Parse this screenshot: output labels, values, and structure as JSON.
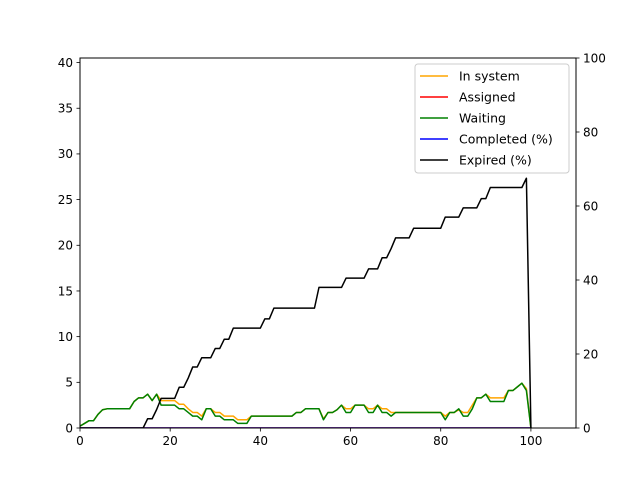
{
  "chart_data": {
    "type": "line",
    "title": "",
    "xlabel": "",
    "ylabel": "",
    "y2label": "",
    "xlim": [
      0,
      110
    ],
    "ylim": [
      0,
      40.5
    ],
    "y2lim": [
      0,
      100
    ],
    "x_ticks": [
      0,
      20,
      40,
      60,
      80,
      100
    ],
    "y_ticks": [
      0,
      5,
      10,
      15,
      20,
      25,
      30,
      35,
      40
    ],
    "y2_ticks": [
      0,
      20,
      40,
      60,
      80,
      100
    ],
    "grid": false,
    "legend_position": "top-right",
    "series": [
      {
        "name": "In system",
        "axis": "left",
        "color": "#ffa500",
        "points": [
          [
            0,
            0.2
          ],
          [
            1,
            0.5
          ],
          [
            2,
            0.8
          ],
          [
            3,
            0.8
          ],
          [
            4,
            1.5
          ],
          [
            5,
            2
          ],
          [
            6,
            2.1
          ],
          [
            7,
            2.1
          ],
          [
            8,
            2.1
          ],
          [
            9,
            2.1
          ],
          [
            10,
            2.1
          ],
          [
            11,
            2.1
          ],
          [
            12,
            2.9
          ],
          [
            13,
            3.3
          ],
          [
            14,
            3.3
          ],
          [
            15,
            3.7
          ],
          [
            16,
            3
          ],
          [
            17,
            3.7
          ],
          [
            18,
            3
          ],
          [
            19,
            3
          ],
          [
            20,
            3
          ],
          [
            21,
            3
          ],
          [
            22,
            2.6
          ],
          [
            23,
            2.6
          ],
          [
            24,
            2.1
          ],
          [
            25,
            1.7
          ],
          [
            26,
            1.7
          ],
          [
            27,
            1.3
          ],
          [
            28,
            2.1
          ],
          [
            29,
            2.1
          ],
          [
            30,
            1.7
          ],
          [
            31,
            1.7
          ],
          [
            32,
            1.3
          ],
          [
            33,
            1.3
          ],
          [
            34,
            1.3
          ],
          [
            35,
            0.9
          ],
          [
            36,
            0.9
          ],
          [
            37,
            0.9
          ],
          [
            38,
            1.3
          ],
          [
            39,
            1.3
          ],
          [
            40,
            1.3
          ],
          [
            41,
            1.3
          ],
          [
            42,
            1.3
          ],
          [
            43,
            1.3
          ],
          [
            44,
            1.3
          ],
          [
            45,
            1.3
          ],
          [
            46,
            1.3
          ],
          [
            47,
            1.3
          ],
          [
            48,
            1.7
          ],
          [
            49,
            1.7
          ],
          [
            50,
            2.1
          ],
          [
            51,
            2.1
          ],
          [
            52,
            2.1
          ],
          [
            53,
            2.1
          ],
          [
            54,
            1
          ],
          [
            55,
            1.7
          ],
          [
            56,
            1.7
          ],
          [
            57,
            2
          ],
          [
            58,
            2.5
          ],
          [
            59,
            2.1
          ],
          [
            60,
            2.1
          ],
          [
            61,
            2.5
          ],
          [
            62,
            2.5
          ],
          [
            63,
            2.5
          ],
          [
            64,
            2.1
          ],
          [
            65,
            2.1
          ],
          [
            66,
            2.5
          ],
          [
            67,
            2.1
          ],
          [
            68,
            2.1
          ],
          [
            69,
            1.7
          ],
          [
            70,
            1.7
          ],
          [
            71,
            1.7
          ],
          [
            72,
            1.7
          ],
          [
            73,
            1.7
          ],
          [
            74,
            1.7
          ],
          [
            75,
            1.7
          ],
          [
            76,
            1.7
          ],
          [
            77,
            1.7
          ],
          [
            78,
            1.7
          ],
          [
            79,
            1.7
          ],
          [
            80,
            1.7
          ],
          [
            81,
            1.3
          ],
          [
            82,
            1.7
          ],
          [
            83,
            1.7
          ],
          [
            84,
            2
          ],
          [
            85,
            1.7
          ],
          [
            86,
            1.7
          ],
          [
            87,
            2.5
          ],
          [
            88,
            3.3
          ],
          [
            89,
            3.3
          ],
          [
            90,
            3.7
          ],
          [
            91,
            3.3
          ],
          [
            92,
            3.3
          ],
          [
            93,
            3.3
          ],
          [
            94,
            3.3
          ],
          [
            95,
            4.1
          ],
          [
            96,
            4.1
          ],
          [
            97,
            4.5
          ],
          [
            98,
            4.9
          ],
          [
            99,
            4.3
          ],
          [
            100,
            0
          ]
        ]
      },
      {
        "name": "Assigned",
        "axis": "left",
        "color": "#ff0000",
        "points": [
          [
            0,
            0
          ],
          [
            100,
            0
          ]
        ]
      },
      {
        "name": "Waiting",
        "axis": "left",
        "color": "#008000",
        "points": [
          [
            0,
            0.2
          ],
          [
            1,
            0.5
          ],
          [
            2,
            0.8
          ],
          [
            3,
            0.8
          ],
          [
            4,
            1.5
          ],
          [
            5,
            2
          ],
          [
            6,
            2.1
          ],
          [
            7,
            2.1
          ],
          [
            8,
            2.1
          ],
          [
            9,
            2.1
          ],
          [
            10,
            2.1
          ],
          [
            11,
            2.1
          ],
          [
            12,
            2.9
          ],
          [
            13,
            3.3
          ],
          [
            14,
            3.3
          ],
          [
            15,
            3.7
          ],
          [
            16,
            3
          ],
          [
            17,
            3.7
          ],
          [
            18,
            2.5
          ],
          [
            19,
            2.5
          ],
          [
            20,
            2.5
          ],
          [
            21,
            2.5
          ],
          [
            22,
            2.1
          ],
          [
            23,
            2.1
          ],
          [
            24,
            1.7
          ],
          [
            25,
            1.3
          ],
          [
            26,
            1.3
          ],
          [
            27,
            0.9
          ],
          [
            28,
            2.1
          ],
          [
            29,
            2.1
          ],
          [
            30,
            1.3
          ],
          [
            31,
            1.3
          ],
          [
            32,
            0.9
          ],
          [
            33,
            0.9
          ],
          [
            34,
            0.9
          ],
          [
            35,
            0.5
          ],
          [
            36,
            0.5
          ],
          [
            37,
            0.5
          ],
          [
            38,
            1.3
          ],
          [
            39,
            1.3
          ],
          [
            40,
            1.3
          ],
          [
            41,
            1.3
          ],
          [
            42,
            1.3
          ],
          [
            43,
            1.3
          ],
          [
            44,
            1.3
          ],
          [
            45,
            1.3
          ],
          [
            46,
            1.3
          ],
          [
            47,
            1.3
          ],
          [
            48,
            1.7
          ],
          [
            49,
            1.7
          ],
          [
            50,
            2.1
          ],
          [
            51,
            2.1
          ],
          [
            52,
            2.1
          ],
          [
            53,
            2.1
          ],
          [
            54,
            0.9
          ],
          [
            55,
            1.7
          ],
          [
            56,
            1.7
          ],
          [
            57,
            2
          ],
          [
            58,
            2.5
          ],
          [
            59,
            1.7
          ],
          [
            60,
            1.7
          ],
          [
            61,
            2.5
          ],
          [
            62,
            2.5
          ],
          [
            63,
            2.5
          ],
          [
            64,
            1.7
          ],
          [
            65,
            1.7
          ],
          [
            66,
            2.5
          ],
          [
            67,
            1.7
          ],
          [
            68,
            1.7
          ],
          [
            69,
            1.3
          ],
          [
            70,
            1.7
          ],
          [
            71,
            1.7
          ],
          [
            72,
            1.7
          ],
          [
            73,
            1.7
          ],
          [
            74,
            1.7
          ],
          [
            75,
            1.7
          ],
          [
            76,
            1.7
          ],
          [
            77,
            1.7
          ],
          [
            78,
            1.7
          ],
          [
            79,
            1.7
          ],
          [
            80,
            1.7
          ],
          [
            81,
            0.9
          ],
          [
            82,
            1.7
          ],
          [
            83,
            1.7
          ],
          [
            84,
            2.1
          ],
          [
            85,
            1.3
          ],
          [
            86,
            1.3
          ],
          [
            87,
            2.1
          ],
          [
            88,
            3.3
          ],
          [
            89,
            3.3
          ],
          [
            90,
            3.7
          ],
          [
            91,
            2.9
          ],
          [
            92,
            2.9
          ],
          [
            93,
            2.9
          ],
          [
            94,
            2.9
          ],
          [
            95,
            4.1
          ],
          [
            96,
            4.1
          ],
          [
            97,
            4.5
          ],
          [
            98,
            4.9
          ],
          [
            99,
            4.1
          ],
          [
            100,
            0
          ]
        ]
      },
      {
        "name": "Completed (%)",
        "axis": "right",
        "color": "#0000ff",
        "points": [
          [
            0,
            0
          ],
          [
            100,
            0
          ]
        ]
      },
      {
        "name": "Expired (%)",
        "axis": "right",
        "color": "#000000",
        "points": [
          [
            0,
            0
          ],
          [
            14,
            0
          ],
          [
            15,
            2.5
          ],
          [
            16,
            2.5
          ],
          [
            17,
            5
          ],
          [
            18,
            8
          ],
          [
            19,
            8
          ],
          [
            20,
            8
          ],
          [
            21,
            8
          ],
          [
            22,
            11
          ],
          [
            23,
            11
          ],
          [
            24,
            13.5
          ],
          [
            25,
            16.5
          ],
          [
            26,
            16.5
          ],
          [
            27,
            19
          ],
          [
            28,
            19
          ],
          [
            29,
            19
          ],
          [
            30,
            21.5
          ],
          [
            31,
            21.5
          ],
          [
            32,
            24
          ],
          [
            33,
            24
          ],
          [
            34,
            27
          ],
          [
            35,
            27
          ],
          [
            36,
            27
          ],
          [
            37,
            27
          ],
          [
            38,
            27
          ],
          [
            39,
            27
          ],
          [
            40,
            27
          ],
          [
            41,
            29.5
          ],
          [
            42,
            29.5
          ],
          [
            43,
            32.4
          ],
          [
            44,
            32.4
          ],
          [
            45,
            32.4
          ],
          [
            46,
            32.4
          ],
          [
            47,
            32.4
          ],
          [
            48,
            32.4
          ],
          [
            49,
            32.4
          ],
          [
            50,
            32.4
          ],
          [
            51,
            32.4
          ],
          [
            52,
            32.4
          ],
          [
            53,
            38
          ],
          [
            54,
            38
          ],
          [
            55,
            38
          ],
          [
            56,
            38
          ],
          [
            57,
            38
          ],
          [
            58,
            38
          ],
          [
            59,
            40.5
          ],
          [
            60,
            40.5
          ],
          [
            61,
            40.5
          ],
          [
            62,
            40.5
          ],
          [
            63,
            40.5
          ],
          [
            64,
            43
          ],
          [
            65,
            43
          ],
          [
            66,
            43
          ],
          [
            67,
            46
          ],
          [
            68,
            46
          ],
          [
            69,
            48.5
          ],
          [
            70,
            51.4
          ],
          [
            71,
            51.4
          ],
          [
            72,
            51.4
          ],
          [
            73,
            51.4
          ],
          [
            74,
            54
          ],
          [
            75,
            54
          ],
          [
            76,
            54
          ],
          [
            77,
            54
          ],
          [
            78,
            54
          ],
          [
            79,
            54
          ],
          [
            80,
            54
          ],
          [
            81,
            57
          ],
          [
            82,
            57
          ],
          [
            83,
            57
          ],
          [
            84,
            57
          ],
          [
            85,
            59.5
          ],
          [
            86,
            59.5
          ],
          [
            87,
            59.5
          ],
          [
            88,
            59.5
          ],
          [
            89,
            62
          ],
          [
            90,
            62
          ],
          [
            91,
            65
          ],
          [
            92,
            65
          ],
          [
            93,
            65
          ],
          [
            94,
            65
          ],
          [
            95,
            65
          ],
          [
            96,
            65
          ],
          [
            97,
            65
          ],
          [
            98,
            65
          ],
          [
            99,
            67.5
          ],
          [
            100,
            0
          ]
        ]
      }
    ]
  }
}
